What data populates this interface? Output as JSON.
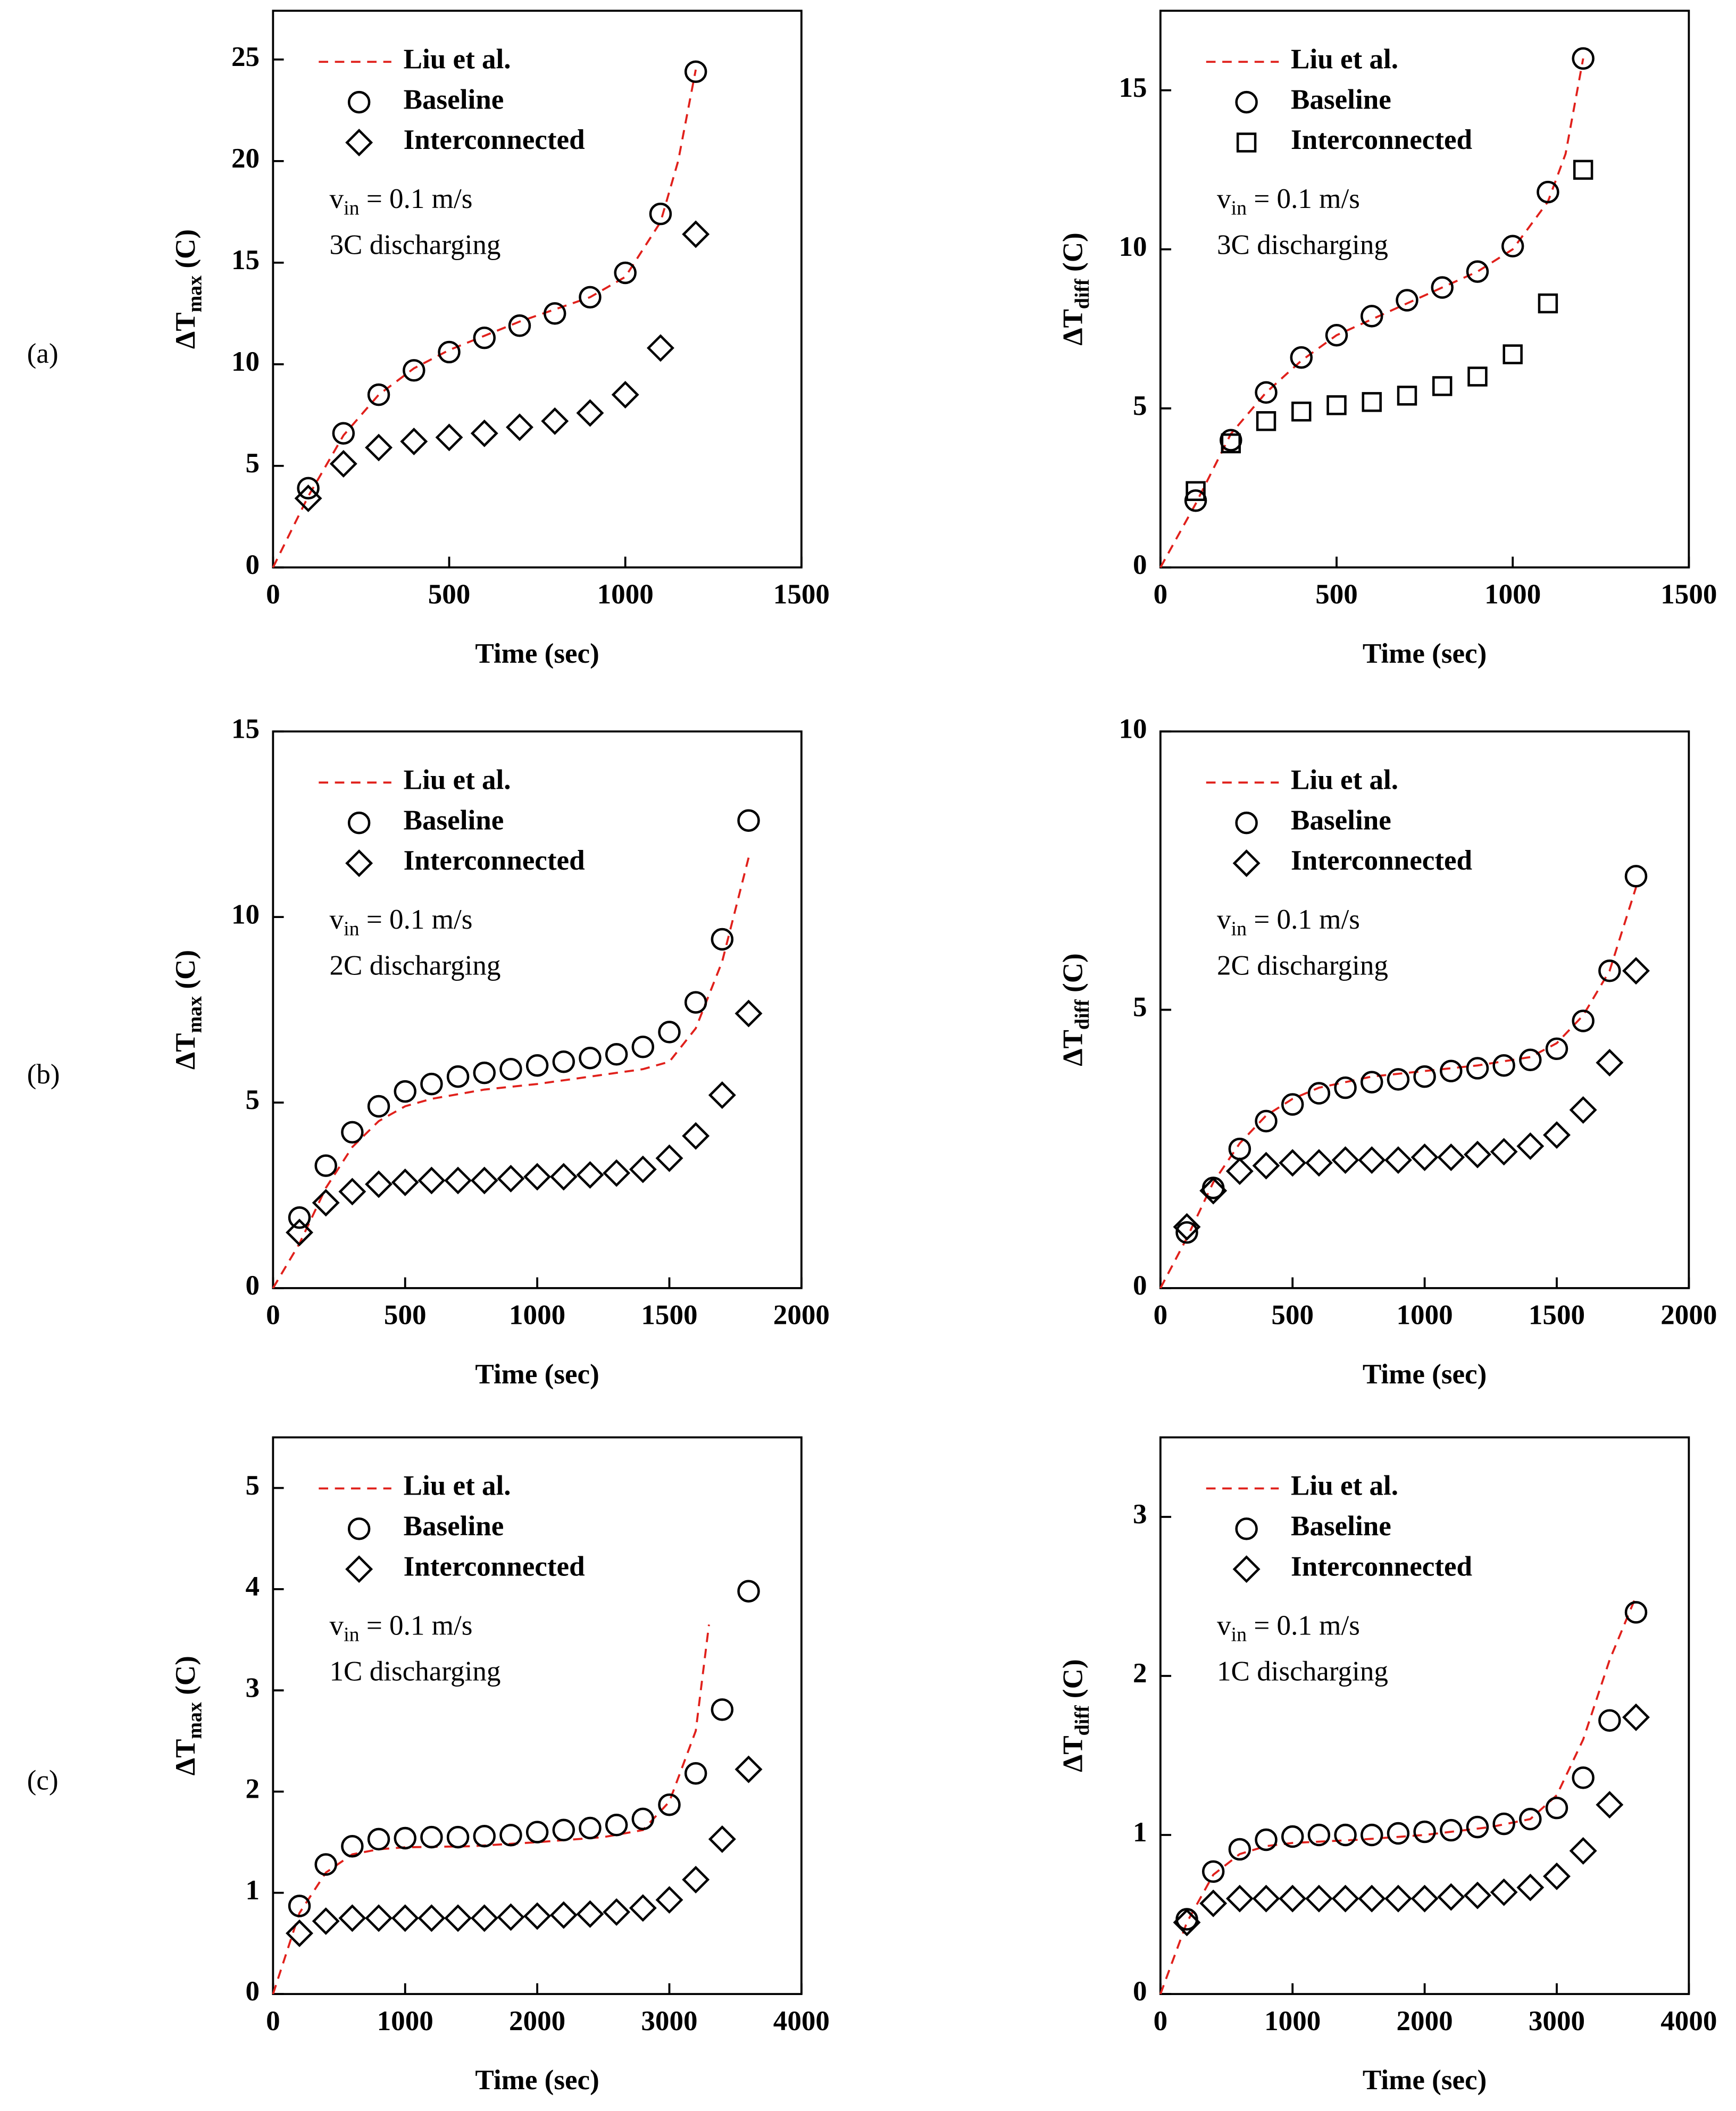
{
  "chart_data": [
    {
      "type": "scatter",
      "panel_label": "(a)",
      "x_label": "Time (sec)",
      "y_label": {
        "base": "ΔT",
        "sub": "max",
        "text": " (C)"
      },
      "velocity_label": {
        "base": "v",
        "sub": "in",
        "text": " = 0.1 m/s"
      },
      "condition": "3C discharging",
      "xlim": [
        0,
        1500
      ],
      "ylim": [
        0,
        27.4
      ],
      "xticks": [
        0,
        500,
        1000,
        1500
      ],
      "yticks": [
        0,
        5,
        10,
        15,
        20,
        25
      ],
      "series": [
        {
          "name": "Liu et al.",
          "color": "#e0201b",
          "marker": "dashed",
          "x": [
            0,
            100,
            200,
            300,
            400,
            500,
            600,
            700,
            800,
            900,
            1000,
            1100,
            1150,
            1200
          ],
          "values": [
            0,
            3.5,
            6.5,
            8.5,
            9.8,
            10.7,
            11.4,
            12.1,
            12.7,
            13.3,
            14.3,
            17,
            20,
            24.5
          ]
        },
        {
          "name": "Baseline",
          "color": "#000000",
          "marker": "circle",
          "x": [
            100,
            200,
            300,
            400,
            500,
            600,
            700,
            800,
            900,
            1000,
            1100,
            1200
          ],
          "values": [
            3.9,
            6.6,
            8.5,
            9.7,
            10.6,
            11.3,
            11.9,
            12.5,
            13.3,
            14.5,
            17.4,
            24.4
          ]
        },
        {
          "name": "Interconnected",
          "color": "#000000",
          "marker": "diamond",
          "x": [
            100,
            200,
            300,
            400,
            500,
            600,
            700,
            800,
            900,
            1000,
            1100,
            1200
          ],
          "values": [
            3.4,
            5.1,
            5.9,
            6.2,
            6.4,
            6.6,
            6.9,
            7.2,
            7.6,
            8.5,
            10.8,
            16.4
          ]
        }
      ]
    },
    {
      "type": "scatter",
      "x_label": "Time (sec)",
      "y_label": {
        "base": "ΔT",
        "sub": "diff",
        "text": " (C)"
      },
      "velocity_label": {
        "base": "v",
        "sub": "in",
        "text": " = 0.1 m/s"
      },
      "condition": "3C discharging",
      "xlim": [
        0,
        1500
      ],
      "ylim": [
        0,
        17.5
      ],
      "xticks": [
        0,
        500,
        1000,
        1500
      ],
      "yticks": [
        0,
        5,
        10,
        15
      ],
      "series": [
        {
          "name": "Liu et al.",
          "color": "#e0201b",
          "marker": "dashed",
          "x": [
            0,
            100,
            200,
            300,
            400,
            500,
            600,
            700,
            800,
            900,
            1000,
            1100,
            1150,
            1200
          ],
          "values": [
            0,
            2.0,
            4.2,
            5.5,
            6.5,
            7.3,
            7.8,
            8.3,
            8.8,
            9.3,
            10.0,
            11.5,
            13,
            16
          ]
        },
        {
          "name": "Baseline",
          "color": "#000000",
          "marker": "circle",
          "x": [
            100,
            200,
            300,
            400,
            500,
            600,
            700,
            800,
            900,
            1000,
            1100,
            1200
          ],
          "values": [
            2.1,
            4.0,
            5.5,
            6.6,
            7.3,
            7.9,
            8.4,
            8.8,
            9.3,
            10.1,
            11.8,
            16.0
          ]
        },
        {
          "name": "Interconnected",
          "color": "#000000",
          "marker": "square",
          "x": [
            100,
            200,
            300,
            400,
            500,
            600,
            700,
            800,
            900,
            1000,
            1100,
            1200
          ],
          "values": [
            2.4,
            3.9,
            4.6,
            4.9,
            5.1,
            5.2,
            5.4,
            5.7,
            6.0,
            6.7,
            8.3,
            12.5
          ]
        }
      ]
    },
    {
      "type": "scatter",
      "panel_label": "(b)",
      "x_label": "Time (sec)",
      "y_label": {
        "base": "ΔT",
        "sub": "max",
        "text": " (C)"
      },
      "velocity_label": {
        "base": "v",
        "sub": "in",
        "text": " = 0.1 m/s"
      },
      "condition": "2C discharging",
      "xlim": [
        0,
        2000
      ],
      "ylim": [
        0,
        15
      ],
      "xticks": [
        0,
        500,
        1000,
        1500,
        2000
      ],
      "yticks": [
        0,
        5,
        10,
        15
      ],
      "series": [
        {
          "name": "Liu et al.",
          "color": "#e0201b",
          "marker": "dashed",
          "x": [
            0,
            100,
            200,
            300,
            400,
            500,
            600,
            800,
            1000,
            1200,
            1400,
            1500,
            1600,
            1700,
            1800
          ],
          "values": [
            0,
            1.2,
            2.7,
            3.8,
            4.5,
            4.9,
            5.1,
            5.35,
            5.5,
            5.7,
            5.9,
            6.1,
            7,
            8.8,
            11.6
          ]
        },
        {
          "name": "Baseline",
          "color": "#000000",
          "marker": "circle",
          "x": [
            100,
            200,
            300,
            400,
            500,
            600,
            700,
            800,
            900,
            1000,
            1100,
            1200,
            1300,
            1400,
            1500,
            1600,
            1700,
            1800
          ],
          "values": [
            1.9,
            3.3,
            4.2,
            4.9,
            5.3,
            5.5,
            5.7,
            5.8,
            5.9,
            6.0,
            6.1,
            6.2,
            6.3,
            6.5,
            6.9,
            7.7,
            9.4,
            12.6
          ]
        },
        {
          "name": "Interconnected",
          "color": "#000000",
          "marker": "diamond",
          "x": [
            100,
            200,
            300,
            400,
            500,
            600,
            700,
            800,
            900,
            1000,
            1100,
            1200,
            1300,
            1400,
            1500,
            1600,
            1700,
            1800
          ],
          "values": [
            1.5,
            2.3,
            2.6,
            2.8,
            2.85,
            2.9,
            2.9,
            2.9,
            2.95,
            3.0,
            3.0,
            3.05,
            3.1,
            3.2,
            3.5,
            4.1,
            5.2,
            7.4
          ]
        }
      ]
    },
    {
      "type": "scatter",
      "x_label": "Time (sec)",
      "y_label": {
        "base": "ΔT",
        "sub": "diff",
        "text": " (C)"
      },
      "velocity_label": {
        "base": "v",
        "sub": "in",
        "text": " = 0.1 m/s"
      },
      "condition": "2C discharging",
      "xlim": [
        0,
        2000
      ],
      "ylim": [
        0,
        10
      ],
      "xticks": [
        0,
        500,
        1000,
        1500,
        2000
      ],
      "yticks": [
        0,
        5,
        10
      ],
      "series": [
        {
          "name": "Liu et al.",
          "color": "#e0201b",
          "marker": "dashed",
          "x": [
            0,
            100,
            200,
            300,
            400,
            500,
            600,
            800,
            1000,
            1200,
            1400,
            1500,
            1600,
            1700,
            1800
          ],
          "values": [
            0,
            0.9,
            1.9,
            2.6,
            3.1,
            3.4,
            3.6,
            3.8,
            3.9,
            4.0,
            4.15,
            4.4,
            4.9,
            5.7,
            7.2
          ]
        },
        {
          "name": "Baseline",
          "color": "#000000",
          "marker": "circle",
          "x": [
            100,
            200,
            300,
            400,
            500,
            600,
            700,
            800,
            900,
            1000,
            1100,
            1200,
            1300,
            1400,
            1500,
            1600,
            1700,
            1800
          ],
          "values": [
            1.0,
            1.8,
            2.5,
            3.0,
            3.3,
            3.5,
            3.6,
            3.7,
            3.75,
            3.8,
            3.9,
            3.95,
            4.0,
            4.1,
            4.3,
            4.8,
            5.7,
            7.4
          ]
        },
        {
          "name": "Interconnected",
          "color": "#000000",
          "marker": "diamond",
          "x": [
            100,
            200,
            300,
            400,
            500,
            600,
            700,
            800,
            900,
            1000,
            1100,
            1200,
            1300,
            1400,
            1500,
            1600,
            1700,
            1800
          ],
          "values": [
            1.1,
            1.75,
            2.1,
            2.2,
            2.25,
            2.25,
            2.3,
            2.3,
            2.3,
            2.35,
            2.35,
            2.4,
            2.45,
            2.55,
            2.75,
            3.2,
            4.05,
            5.7
          ]
        }
      ]
    },
    {
      "type": "scatter",
      "panel_label": "(c)",
      "x_label": "Time (sec)",
      "y_label": {
        "base": "ΔT",
        "sub": "max",
        "text": " (C)"
      },
      "velocity_label": {
        "base": "v",
        "sub": "in",
        "text": " = 0.1 m/s"
      },
      "condition": "1C discharging",
      "xlim": [
        0,
        4000
      ],
      "ylim": [
        0,
        5.5
      ],
      "xticks": [
        0,
        1000,
        2000,
        3000,
        4000
      ],
      "yticks": [
        0,
        1,
        2,
        3,
        4,
        5
      ],
      "series": [
        {
          "name": "Liu et al.",
          "color": "#e0201b",
          "marker": "dashed",
          "x": [
            0,
            200,
            400,
            600,
            800,
            1000,
            1500,
            2000,
            2500,
            2800,
            3000,
            3200,
            3300
          ],
          "values": [
            0,
            0.8,
            1.2,
            1.38,
            1.43,
            1.45,
            1.46,
            1.5,
            1.55,
            1.62,
            1.9,
            2.6,
            3.65
          ]
        },
        {
          "name": "Baseline",
          "color": "#000000",
          "marker": "circle",
          "x": [
            200,
            400,
            600,
            800,
            1000,
            1200,
            1400,
            1600,
            1800,
            2000,
            2200,
            2400,
            2600,
            2800,
            3000,
            3200,
            3400,
            3600
          ],
          "values": [
            0.87,
            1.28,
            1.46,
            1.53,
            1.54,
            1.55,
            1.55,
            1.56,
            1.57,
            1.6,
            1.62,
            1.64,
            1.67,
            1.73,
            1.87,
            2.18,
            2.81,
            3.98
          ]
        },
        {
          "name": "Interconnected",
          "color": "#000000",
          "marker": "diamond",
          "x": [
            200,
            400,
            600,
            800,
            1000,
            1200,
            1400,
            1600,
            1800,
            2000,
            2200,
            2400,
            2600,
            2800,
            3000,
            3200,
            3400,
            3600
          ],
          "values": [
            0.6,
            0.72,
            0.75,
            0.75,
            0.75,
            0.75,
            0.75,
            0.75,
            0.76,
            0.77,
            0.78,
            0.79,
            0.81,
            0.85,
            0.93,
            1.13,
            1.53,
            2.22
          ]
        }
      ]
    },
    {
      "type": "scatter",
      "x_label": "Time (sec)",
      "y_label": {
        "base": "ΔT",
        "sub": "diff",
        "text": " (C)"
      },
      "velocity_label": {
        "base": "v",
        "sub": "in",
        "text": " = 0.1 m/s"
      },
      "condition": "1C discharging",
      "xlim": [
        0,
        4000
      ],
      "ylim": [
        0,
        3.5
      ],
      "xticks": [
        0,
        1000,
        2000,
        3000,
        4000
      ],
      "yticks": [
        0,
        1,
        2,
        3
      ],
      "series": [
        {
          "name": "Liu et al.",
          "color": "#e0201b",
          "marker": "dashed",
          "x": [
            0,
            200,
            400,
            600,
            800,
            1000,
            1500,
            2000,
            2500,
            2800,
            3000,
            3200,
            3400,
            3600
          ],
          "values": [
            0,
            0.45,
            0.75,
            0.88,
            0.93,
            0.95,
            0.97,
            1.0,
            1.05,
            1.1,
            1.25,
            1.6,
            2.1,
            2.5
          ]
        },
        {
          "name": "Baseline",
          "color": "#000000",
          "marker": "circle",
          "x": [
            200,
            400,
            600,
            800,
            1000,
            1200,
            1400,
            1600,
            1800,
            2000,
            2200,
            2400,
            2600,
            2800,
            3000,
            3200,
            3400,
            3600
          ],
          "values": [
            0.47,
            0.77,
            0.91,
            0.97,
            0.99,
            1.0,
            1.0,
            1.0,
            1.01,
            1.02,
            1.03,
            1.05,
            1.07,
            1.1,
            1.17,
            1.36,
            1.72,
            2.4
          ]
        },
        {
          "name": "Interconnected",
          "color": "#000000",
          "marker": "diamond",
          "x": [
            200,
            400,
            600,
            800,
            1000,
            1200,
            1400,
            1600,
            1800,
            2000,
            2200,
            2400,
            2600,
            2800,
            3000,
            3200,
            3400,
            3600
          ],
          "values": [
            0.45,
            0.57,
            0.6,
            0.6,
            0.6,
            0.6,
            0.6,
            0.6,
            0.6,
            0.6,
            0.61,
            0.62,
            0.64,
            0.67,
            0.74,
            0.9,
            1.19,
            1.74
          ]
        }
      ]
    }
  ]
}
